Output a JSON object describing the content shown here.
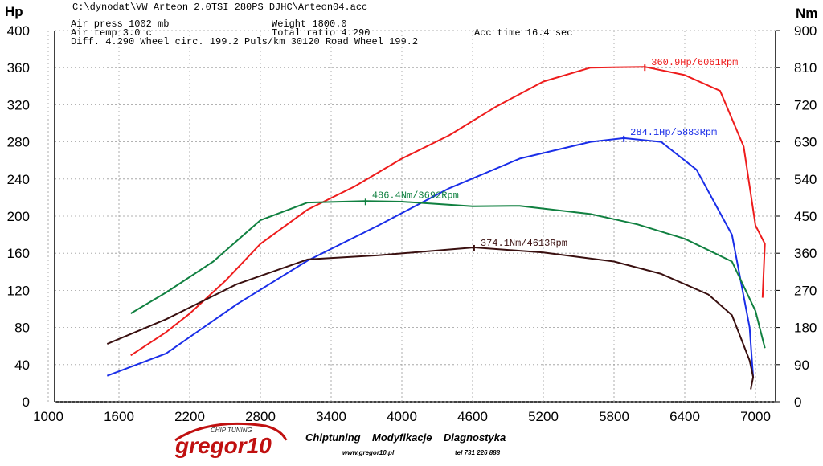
{
  "chart_data": {
    "type": "line",
    "file": "C:\\dynodat\\VW Arteon 2.0TSI 280PS DJHC\\Arteon04.acc",
    "info": [
      "Air press  1002 mb",
      "Weight   1800.0",
      "Air temp    3.0 c",
      "Total ratio 4.290",
      "Acc time    16.4 sec",
      "Diff.      4.290   Wheel circ. 199.2   Puls/km    30120   Road Wheel 199.2"
    ],
    "ylabel": "Hp",
    "y2label": "Nm",
    "xlim": [
      1000,
      7000
    ],
    "xticks": [
      1000,
      1600,
      2200,
      2800,
      3400,
      4000,
      4600,
      5200,
      5800,
      6400,
      7000
    ],
    "ylim": [
      0,
      400
    ],
    "yticks": [
      0,
      40,
      80,
      120,
      160,
      200,
      240,
      280,
      320,
      360,
      400
    ],
    "y2lim": [
      0,
      900
    ],
    "y2ticks": [
      0,
      90,
      180,
      270,
      360,
      450,
      540,
      630,
      720,
      810,
      900
    ],
    "grid": true,
    "series": [
      {
        "color": "#ee1c1c",
        "axis": "y",
        "peak_label": "360.9Hp/6061Rpm",
        "peak_index": 12,
        "x": [
          1700,
          2000,
          2200,
          2500,
          2800,
          3200,
          3600,
          4000,
          4400,
          4800,
          5200,
          5600,
          6061,
          6400,
          6700,
          6900,
          7000,
          7080,
          7060
        ],
        "values": [
          50,
          75,
          95,
          130,
          170,
          207,
          232,
          262,
          287,
          318,
          345,
          360,
          360.9,
          352,
          335,
          275,
          190,
          170,
          112
        ]
      },
      {
        "color": "#1a2ee8",
        "axis": "y",
        "peak_label": "284.1Hp/5883Rpm",
        "peak_index": 8,
        "x": [
          1500,
          2000,
          2600,
          3200,
          3800,
          4400,
          5000,
          5600,
          5883,
          6200,
          6500,
          6800,
          6950,
          6980
        ],
        "values": [
          28,
          52,
          105,
          152,
          190,
          230,
          262,
          280,
          284.1,
          280,
          250,
          180,
          80,
          26
        ]
      },
      {
        "color": "#108040",
        "axis": "y2",
        "peak_label": "486.4Nm/3692Rpm",
        "peak_index": 5,
        "x": [
          1700,
          2000,
          2400,
          2800,
          3200,
          3692,
          4000,
          4600,
          5000,
          5600,
          6000,
          6400,
          6800,
          7000,
          7080
        ],
        "values": [
          214,
          265,
          340,
          440,
          483,
          486.4,
          485,
          474,
          475,
          455,
          430,
          395,
          340,
          220,
          130
        ]
      },
      {
        "color": "#3a1010",
        "axis": "y2",
        "peak_label": "374.1Nm/4613Rpm",
        "peak_index": 5,
        "x": [
          1500,
          2000,
          2600,
          3200,
          3800,
          4613,
          5200,
          5800,
          6200,
          6600,
          6800,
          6950,
          6980,
          6960
        ],
        "values": [
          140,
          200,
          285,
          345,
          355,
          374.1,
          362,
          340,
          310,
          260,
          210,
          100,
          60,
          30
        ]
      }
    ],
    "footer": {
      "brand": "gregor10",
      "brand_tag": "CHIP TUNING",
      "slogan": "Chiptuning    Modyfikacje    Diagnostyka",
      "web": "www.gregor10.pl",
      "phone": "tel 731 226 888"
    }
  }
}
